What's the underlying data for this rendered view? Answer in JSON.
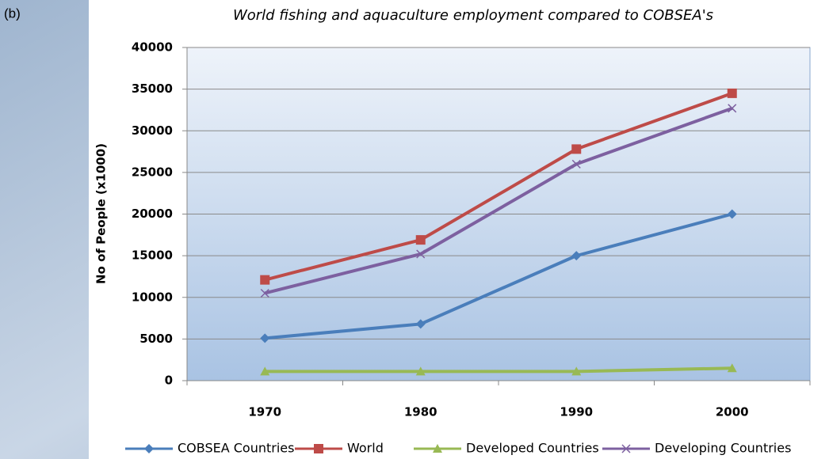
{
  "chart_data": {
    "type": "line",
    "panel_label": "(b)",
    "title": "World fishing and aquaculture employment compared to COBSEA's",
    "y_label": "No of People (x1000)",
    "categories": [
      "1970",
      "1980",
      "1990",
      "2000"
    ],
    "series": [
      {
        "name": "COBSEA Countries",
        "color": "#4a7ebb",
        "marker": "diamond",
        "values": [
          5100,
          6800,
          15000,
          20000
        ]
      },
      {
        "name": "World",
        "color": "#be4b48",
        "marker": "square",
        "values": [
          12100,
          16900,
          27800,
          34500
        ]
      },
      {
        "name": "Developed Countries",
        "color": "#98b954",
        "marker": "triangle",
        "values": [
          1100,
          1100,
          1100,
          1500
        ]
      },
      {
        "name": "Developing Countries",
        "color": "#7d60a0",
        "marker": "x",
        "values": [
          10500,
          15200,
          26000,
          32700
        ]
      }
    ],
    "ylim": [
      0,
      40000
    ],
    "yticks": [
      0,
      5000,
      10000,
      15000,
      20000,
      25000,
      30000,
      35000,
      40000
    ],
    "grid": true,
    "legend": "bottom"
  }
}
